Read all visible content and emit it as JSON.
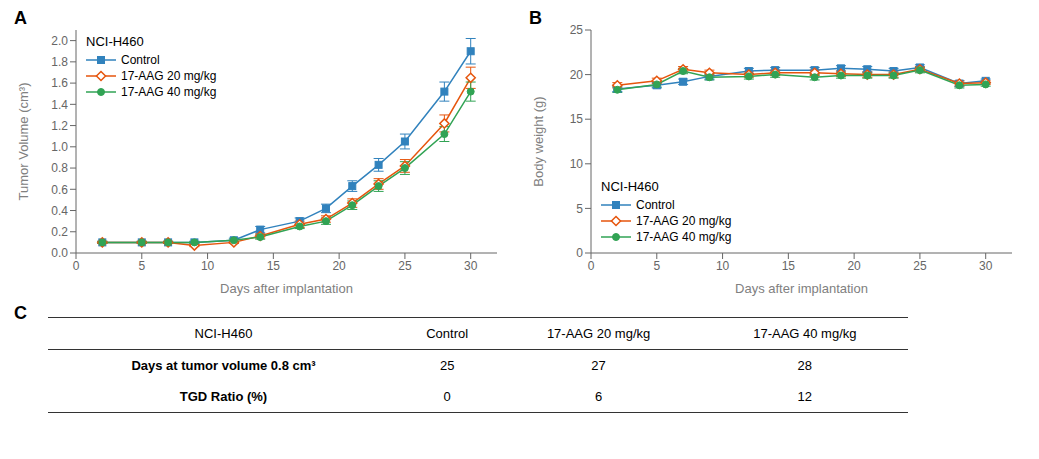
{
  "chart_data": [
    {
      "type": "line",
      "title": "NCI-H460",
      "annotations": [
        "A"
      ],
      "x_label": "Days after implantation",
      "y_label": "Tumor Volume (cm³)",
      "xlim": [
        0,
        32
      ],
      "ylim": [
        0,
        2.1
      ],
      "xticks": [
        0,
        5,
        10,
        15,
        20,
        25,
        30
      ],
      "yticks": [
        {
          "value": 0,
          "label": "0.0"
        },
        0.2,
        0.4,
        0.6,
        0.8,
        {
          "value": 1.0,
          "label": "1.0"
        },
        1.2,
        1.4,
        1.6,
        1.8,
        {
          "value": 2.0,
          "label": "2.0"
        }
      ],
      "grid": false,
      "legend": "upper left",
      "x": [
        2,
        5,
        7,
        9,
        12,
        14,
        17,
        19,
        21,
        23,
        25,
        28,
        30
      ],
      "series": [
        {
          "name": "Control",
          "marker": "square",
          "line_style": "solid",
          "values": [
            0.1,
            0.1,
            0.1,
            0.1,
            0.12,
            0.22,
            0.3,
            0.42,
            0.63,
            0.83,
            1.05,
            1.52,
            1.9
          ],
          "errors": [
            0.01,
            0.01,
            0.01,
            0.01,
            0.02,
            0.03,
            0.03,
            0.04,
            0.05,
            0.06,
            0.07,
            0.09,
            0.12
          ]
        },
        {
          "name": "17-AAG 20 mg/kg",
          "marker": "diamond",
          "line_style": "solid",
          "values": [
            0.1,
            0.1,
            0.1,
            0.07,
            0.1,
            0.16,
            0.27,
            0.32,
            0.47,
            0.65,
            0.82,
            1.22,
            1.65
          ],
          "errors": [
            0.01,
            0.01,
            0.01,
            0.01,
            0.01,
            0.02,
            0.03,
            0.03,
            0.04,
            0.05,
            0.06,
            0.08,
            0.1
          ]
        },
        {
          "name": "17-AAG 40 mg/kg",
          "marker": "circle",
          "line_style": "solid",
          "values": [
            0.1,
            0.1,
            0.1,
            0.1,
            0.12,
            0.15,
            0.25,
            0.3,
            0.45,
            0.63,
            0.8,
            1.12,
            1.52
          ],
          "errors": [
            0.01,
            0.01,
            0.01,
            0.01,
            0.01,
            0.02,
            0.02,
            0.03,
            0.04,
            0.05,
            0.06,
            0.07,
            0.09
          ]
        }
      ]
    },
    {
      "type": "line",
      "title": "NCI-H460",
      "annotations": [
        "B"
      ],
      "x_label": "Days after implantation",
      "y_label": "Body weight (g)",
      "xlim": [
        0,
        32
      ],
      "ylim": [
        0,
        25
      ],
      "xticks": [
        0,
        5,
        10,
        15,
        20,
        25,
        30
      ],
      "yticks": [
        0,
        5,
        10,
        15,
        20,
        25
      ],
      "grid": false,
      "legend": "lower left",
      "x": [
        2,
        5,
        7,
        9,
        12,
        14,
        17,
        19,
        21,
        23,
        25,
        28,
        30
      ],
      "series": [
        {
          "name": "Control",
          "marker": "square",
          "line_style": "solid",
          "values": [
            18.4,
            18.8,
            19.2,
            19.8,
            20.4,
            20.5,
            20.5,
            20.7,
            20.6,
            20.4,
            20.8,
            19.0,
            19.3
          ],
          "errors": [
            0.3,
            0.3,
            0.3,
            0.3,
            0.3,
            0.3,
            0.3,
            0.3,
            0.3,
            0.3,
            0.3,
            0.3,
            0.2
          ]
        },
        {
          "name": "17-AAG 20 mg/kg",
          "marker": "diamond",
          "line_style": "solid",
          "values": [
            18.8,
            19.3,
            20.6,
            20.2,
            20.0,
            20.2,
            20.2,
            20.1,
            20.0,
            20.0,
            20.6,
            19.0,
            19.1
          ],
          "errors": [
            0.3,
            0.3,
            0.3,
            0.3,
            0.3,
            0.3,
            0.3,
            0.3,
            0.3,
            0.3,
            0.3,
            0.3,
            0.2
          ]
        },
        {
          "name": "17-AAG 40 mg/kg",
          "marker": "circle",
          "line_style": "solid",
          "values": [
            18.3,
            18.9,
            20.4,
            19.7,
            19.8,
            20.0,
            19.7,
            19.9,
            19.9,
            19.9,
            20.5,
            18.8,
            18.9
          ],
          "errors": [
            0.3,
            0.3,
            0.3,
            0.3,
            0.3,
            0.3,
            0.3,
            0.3,
            0.3,
            0.3,
            0.3,
            0.3,
            0.2
          ]
        }
      ]
    },
    {
      "type": "table",
      "annotations": [
        "C"
      ],
      "columns": [
        "NCI-H460",
        "Control",
        "17-AAG 20 mg/kg",
        "17-AAG 40 mg/kg"
      ],
      "rows": [
        [
          "Days at tumor volume 0.8 cm³",
          "25",
          "27",
          "28"
        ],
        [
          "TGD Ratio (%)",
          "0",
          "6",
          "12"
        ]
      ]
    }
  ]
}
